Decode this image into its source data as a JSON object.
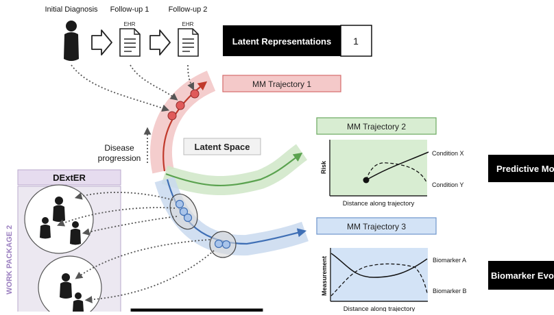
{
  "timeline": {
    "initial_label": "Initial Diagnosis",
    "followup1_label": "Follow-up 1",
    "followup2_label": "Follow-up 2",
    "doc_tag": "EHR"
  },
  "latent": {
    "label": "Latent Representations",
    "value": "1"
  },
  "latent_space_label": "Latent Space",
  "disease_progression": {
    "line1": "Disease",
    "line2": "progression"
  },
  "trajectories": [
    {
      "label": "MM Trajectory 1",
      "color": "#c0392b",
      "box_fill": "#f4c9c9",
      "box_stroke": "#d46a6a"
    },
    {
      "label": "MM Trajectory 2",
      "color": "#5aa24f",
      "box_fill": "#d8edd2",
      "box_stroke": "#6aa85f"
    },
    {
      "label": "MM Trajectory 3",
      "color": "#3f6fb5",
      "box_fill": "#d3e3f6",
      "box_stroke": "#6d95cb"
    }
  ],
  "risk_plot": {
    "ylabel": "Risk",
    "xlabel": "Distance along trajectory",
    "series": [
      "Condition X",
      "Condition Y"
    ],
    "bg": "#d8edd2"
  },
  "measurement_plot": {
    "ylabel": "Measurement",
    "xlabel": "Distance along trajectory",
    "series": [
      "Biomarker A",
      "Biomarker B"
    ],
    "bg": "#d3e3f6"
  },
  "predictive_label": "Predictive Mo",
  "biomarker_label": "Biomarker Evo",
  "dexter": {
    "title": "DExtER",
    "side_label": "WORK PACKAGE 2"
  }
}
